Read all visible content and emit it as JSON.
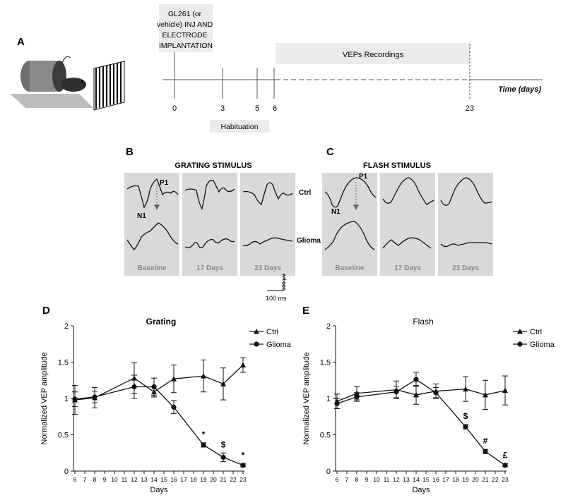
{
  "panel_letters": {
    "a": "A",
    "b": "B",
    "c": "C",
    "d": "D",
    "e": "E"
  },
  "timeline": {
    "injection_label": [
      "GL261 (or",
      "vehicle) INJ AND",
      "ELECTRODE",
      "IMPLANTATION"
    ],
    "vep_label": "VEPs Recordings",
    "habituation_label": "Habituation",
    "axis_label": "Time (days)",
    "ticks": [
      "0",
      "3",
      "5",
      "6",
      "23"
    ]
  },
  "grating_panel": {
    "title": "GRATING STIMULUS",
    "cols": [
      "Baseline",
      "17 Days",
      "23 Days"
    ]
  },
  "flash_panel": {
    "title": "FLASH STIMULUS",
    "cols": [
      "Baseline",
      "17 Days",
      "23 Days"
    ]
  },
  "trace_labels": {
    "ctrl": "Ctrl",
    "glioma": "Glioma",
    "p1": "P1",
    "n1": "N1"
  },
  "scale_bar": {
    "time": "100 ms",
    "amplitude": "100 µV"
  },
  "colors": {
    "panel_bg": "#d9d9d9",
    "bar_bg": "#e9ece9",
    "ink": "#111111",
    "col_label": "#8a8a8a"
  },
  "chart_data": [
    {
      "type": "line",
      "title": "Grating",
      "xlabel": "Days",
      "ylabel": "Normalized VEP amplitude",
      "ylim": [
        0,
        2
      ],
      "yticks": [
        "0",
        "0.5",
        "1",
        "1.5",
        "2"
      ],
      "xticks": [
        "6",
        "7",
        "8",
        "9",
        "10",
        "11",
        "12",
        "13",
        "14",
        "15",
        "16",
        "17",
        "18",
        "19",
        "20",
        "21",
        "22",
        "23"
      ],
      "series": [
        {
          "name": "Ctrl",
          "marker": "triangle",
          "x": [
            6,
            8,
            12,
            14,
            16,
            19,
            21,
            23
          ],
          "y": [
            0.98,
            1.01,
            1.28,
            1.09,
            1.27,
            1.31,
            1.2,
            1.46
          ],
          "err": [
            0.2,
            0.14,
            0.21,
            0.07,
            0.19,
            0.22,
            0.22,
            0.1
          ]
        },
        {
          "name": "Glioma",
          "marker": "circle",
          "x": [
            6,
            8,
            12,
            14,
            16,
            19,
            21,
            23
          ],
          "y": [
            0.99,
            1.02,
            1.16,
            1.16,
            0.88,
            0.36,
            0.19,
            0.08
          ],
          "err": [
            0.1,
            0.08,
            0.16,
            0.12,
            0.09,
            0.03,
            0.06,
            0.02
          ]
        }
      ],
      "annotations": [
        {
          "x": 19,
          "text": "*"
        },
        {
          "x": 21,
          "text": "$"
        },
        {
          "x": 23,
          "text": "*"
        }
      ]
    },
    {
      "type": "line",
      "title": "Flash",
      "xlabel": "Days",
      "ylabel": "Normalized VEP amplitude",
      "ylim": [
        0,
        2
      ],
      "yticks": [
        "0",
        "0.5",
        "1",
        "1.5",
        "2"
      ],
      "xticks": [
        "6",
        "7",
        "8",
        "9",
        "10",
        "11",
        "12",
        "13",
        "14",
        "15",
        "16",
        "17",
        "18",
        "19",
        "20",
        "21",
        "22",
        "23"
      ],
      "series": [
        {
          "name": "Ctrl",
          "marker": "triangle",
          "x": [
            6,
            8,
            12,
            14,
            16,
            19,
            21,
            23
          ],
          "y": [
            0.96,
            1.07,
            1.12,
            1.05,
            1.1,
            1.13,
            1.05,
            1.11
          ],
          "err": [
            0.1,
            0.09,
            0.12,
            0.13,
            0.1,
            0.17,
            0.2,
            0.2
          ]
        },
        {
          "name": "Glioma",
          "marker": "circle",
          "x": [
            6,
            8,
            12,
            14,
            16,
            19,
            21,
            23
          ],
          "y": [
            0.93,
            1.02,
            1.09,
            1.26,
            1.08,
            0.61,
            0.27,
            0.08
          ],
          "err": [
            0.07,
            0.06,
            0.08,
            0.1,
            0.07,
            0.03,
            0.03,
            0.02
          ]
        }
      ],
      "annotations": [
        {
          "x": 19,
          "text": "$"
        },
        {
          "x": 21,
          "text": "#"
        },
        {
          "x": 23,
          "text": "£"
        }
      ]
    }
  ]
}
